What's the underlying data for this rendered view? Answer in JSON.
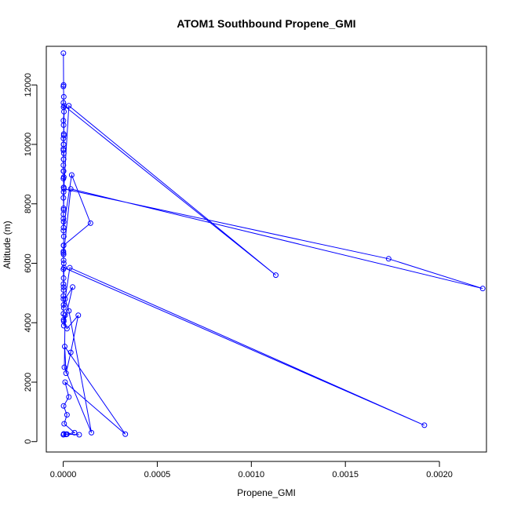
{
  "chart_data": {
    "type": "line",
    "title": "ATOM1 Southbound Propene_GMI",
    "xlabel": "Propene_GMI",
    "ylabel": "Altitude (m)",
    "xlim": [
      -9e-05,
      0.00225
    ],
    "ylim": [
      -350,
      13300
    ],
    "x_ticks": [
      0,
      0.0005,
      0.001,
      0.0015,
      0.002
    ],
    "x_tick_labels": [
      "0.0000",
      "0.0005",
      "0.0010",
      "0.0015",
      "0.0020"
    ],
    "y_ticks": [
      0,
      2000,
      4000,
      6000,
      8000,
      10000,
      12000
    ],
    "y_tick_labels": [
      "0",
      "2000",
      "4000",
      "6000",
      "8000",
      "10000",
      "12000"
    ],
    "grid": false,
    "legend": "none",
    "marker": "open-circle",
    "colors": {
      "series": "#0000ff",
      "axis": "#000000"
    },
    "series": [
      {
        "x": [
          1e-06,
          2e-06,
          1e-06,
          3e-06,
          1e-06,
          2e-06,
          4e-06,
          1e-06,
          2e-06,
          3e-06,
          1e-06,
          2e-06,
          1e-06,
          3e-06,
          2e-06,
          1e-06,
          2e-06,
          1e-06,
          3e-06,
          2e-06,
          3e-05,
          0.00113,
          5e-06,
          3e-06,
          2e-06,
          1e-06,
          2e-06,
          1e-06,
          3e-06,
          2e-06,
          1e-06,
          2e-06,
          1e-06,
          2e-06,
          1e-06,
          3e-06,
          2e-06,
          1e-06,
          2e-06,
          4e-05,
          0.00223,
          0.00173,
          4e-06,
          2e-06,
          1e-06,
          2e-06,
          4.5e-05,
          0.000145,
          2e-06,
          1e-06,
          2e-06,
          3e-06,
          1e-06,
          2e-06,
          1e-06,
          2e-06,
          1e-06,
          3e-06,
          3.5e-05,
          0.00192,
          4e-06,
          2e-06,
          1e-06,
          2e-06,
          1e-06,
          2e-06,
          3e-06,
          5e-05,
          1e-05,
          3e-05,
          0.00015,
          6e-06,
          1e-05,
          3e-06,
          2e-05,
          8e-05,
          4e-05,
          1.5e-05,
          8e-06,
          0.00033,
          1e-05,
          3e-05,
          2e-06,
          2e-05,
          5e-06,
          6e-05,
          2e-05,
          8.5e-05,
          1.5e-05,
          3e-06,
          1.5e-05,
          1e-06
        ],
        "y": [
          13070,
          12000,
          11950,
          11600,
          11400,
          11250,
          11100,
          10800,
          10650,
          10350,
          10200,
          10000,
          9850,
          9700,
          9500,
          9300,
          9100,
          8850,
          8550,
          8400,
          11300,
          5600,
          11300,
          10300,
          10000,
          9800,
          9500,
          9100,
          8900,
          8550,
          8200,
          7850,
          7650,
          7400,
          7100,
          6900,
          6600,
          6400,
          6300,
          8500,
          5150,
          6150,
          8500,
          7800,
          7500,
          7200,
          8970,
          7350,
          6600,
          6350,
          6100,
          6000,
          5800,
          5500,
          5300,
          5100,
          4800,
          4500,
          5850,
          550,
          5850,
          5200,
          4900,
          4600,
          4300,
          4100,
          3900,
          5200,
          4800,
          4400,
          300,
          2500,
          4250,
          4050,
          3800,
          4250,
          3000,
          2300,
          3200,
          250,
          2000,
          1500,
          1200,
          900,
          600,
          300,
          250,
          230,
          250,
          260,
          240,
          230
        ]
      }
    ]
  }
}
